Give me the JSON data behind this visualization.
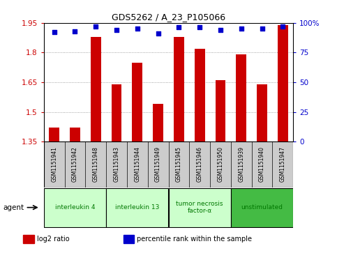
{
  "title": "GDS5262 / A_23_P105066",
  "samples": [
    "GSM1151941",
    "GSM1151942",
    "GSM1151948",
    "GSM1151943",
    "GSM1151944",
    "GSM1151949",
    "GSM1151945",
    "GSM1151946",
    "GSM1151950",
    "GSM1151939",
    "GSM1151940",
    "GSM1151947"
  ],
  "log2_values": [
    1.42,
    1.42,
    1.88,
    1.64,
    1.75,
    1.54,
    1.88,
    1.82,
    1.66,
    1.79,
    1.64,
    1.94
  ],
  "percentile_values": [
    92,
    93,
    97,
    94,
    95,
    91,
    96,
    96,
    94,
    95,
    95,
    97
  ],
  "agents": [
    {
      "label": "interleukin 4",
      "start": 0,
      "end": 3,
      "color": "#ccffcc",
      "text_color": "#007700"
    },
    {
      "label": "interleukin 13",
      "start": 3,
      "end": 6,
      "color": "#ccffcc",
      "text_color": "#007700"
    },
    {
      "label": "tumor necrosis\nfactor-α",
      "start": 6,
      "end": 9,
      "color": "#ccffcc",
      "text_color": "#007700"
    },
    {
      "label": "unstimulated",
      "start": 9,
      "end": 12,
      "color": "#44bb44",
      "text_color": "#007700"
    }
  ],
  "ylim_left": [
    1.35,
    1.95
  ],
  "ylim_right": [
    0,
    100
  ],
  "yticks_left": [
    1.35,
    1.5,
    1.65,
    1.8,
    1.95
  ],
  "yticks_right": [
    0,
    25,
    50,
    75,
    100
  ],
  "ytick_labels_left": [
    "1.35",
    "1.5",
    "1.65",
    "1.8",
    "1.95"
  ],
  "ytick_labels_right": [
    "0",
    "25",
    "50",
    "75",
    "100%"
  ],
  "bar_color": "#cc0000",
  "dot_color": "#0000cc",
  "bar_width": 0.5,
  "grid_color": "#888888",
  "bg_color": "#ffffff",
  "sample_bg": "#cccccc",
  "agent_label": "agent",
  "legend_log2": "log2 ratio",
  "legend_pct": "percentile rank within the sample"
}
